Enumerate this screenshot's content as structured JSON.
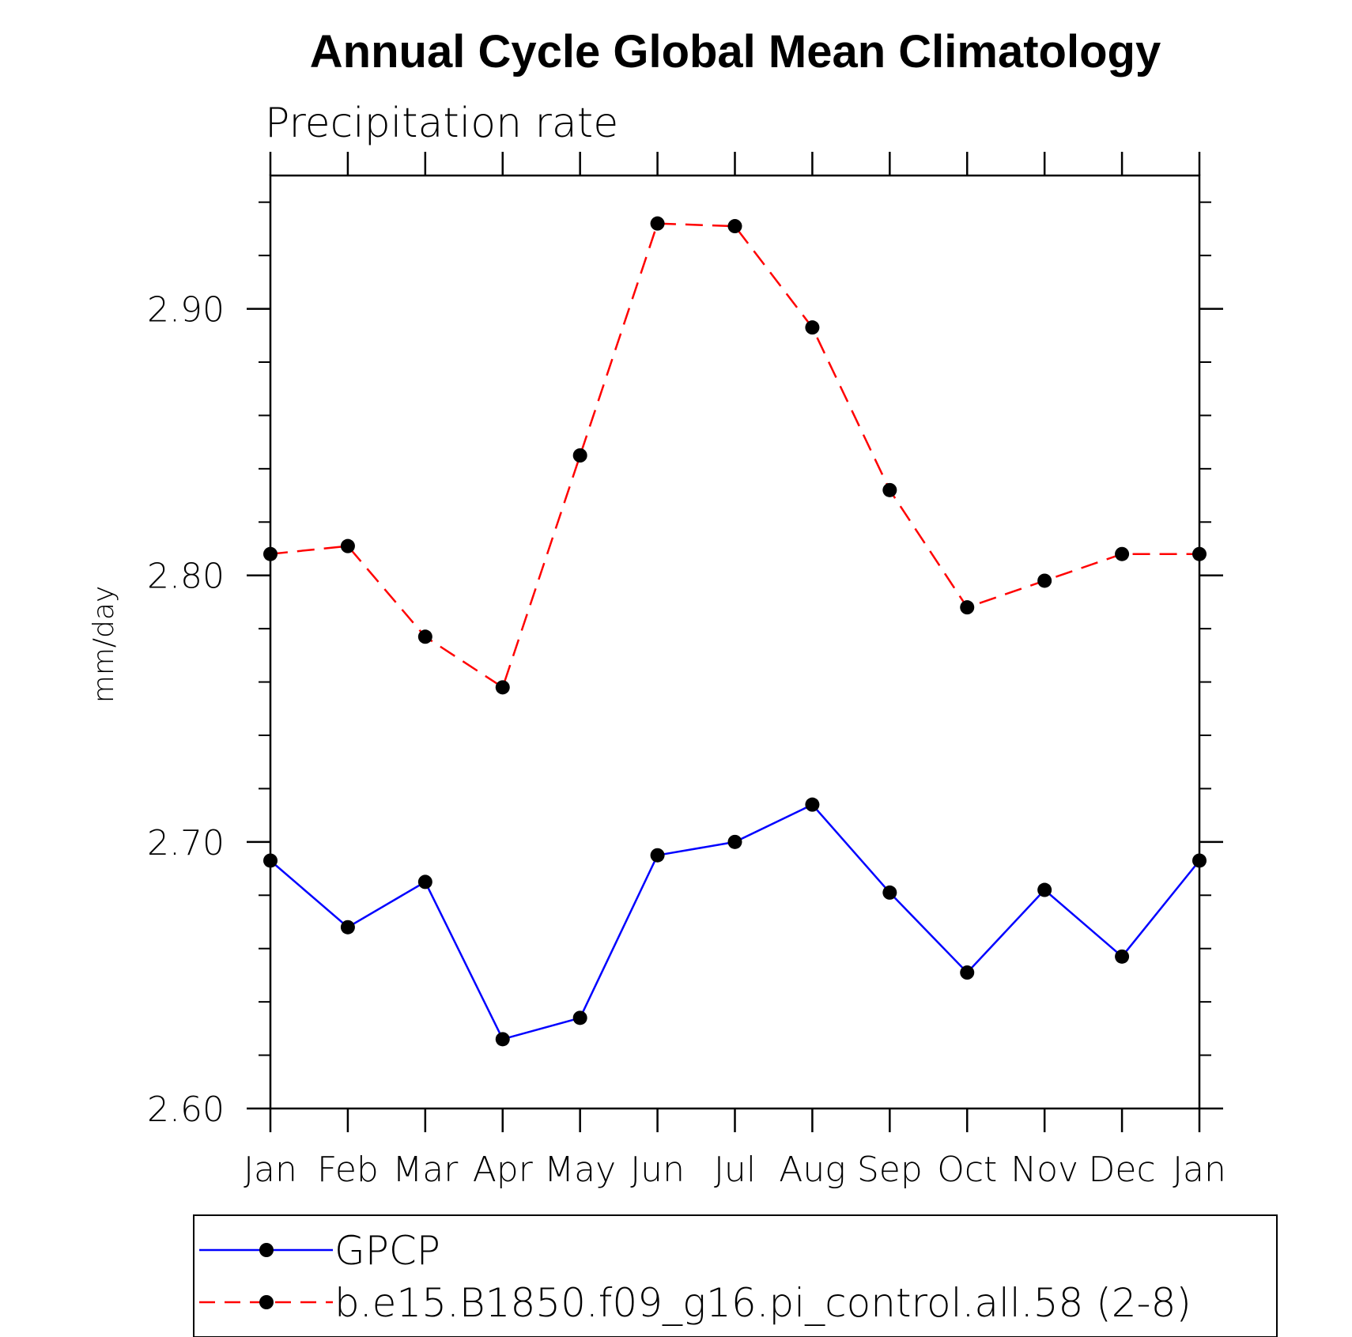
{
  "chart_data": {
    "type": "line",
    "title": "Annual Cycle Global Mean Climatology",
    "subtitle": "Precipitation rate",
    "xlabel": "",
    "ylabel": "mm/day",
    "categories": [
      "Jan",
      "Feb",
      "Mar",
      "Apr",
      "May",
      "Jun",
      "Jul",
      "Aug",
      "Sep",
      "Oct",
      "Nov",
      "Dec",
      "Jan"
    ],
    "ylim": [
      2.6,
      2.95
    ],
    "yticks": [
      "2.60",
      "2.70",
      "2.80",
      "2.90"
    ],
    "grid": false,
    "legend_position": "bottom",
    "series": [
      {
        "name": "GPCP",
        "color": "#0000ff",
        "line_style": "solid",
        "marker": "filled-circle",
        "values": [
          2.693,
          2.668,
          2.685,
          2.626,
          2.634,
          2.695,
          2.7,
          2.714,
          2.681,
          2.651,
          2.682,
          2.657,
          2.693
        ]
      },
      {
        "name": "b.e15.B1850.f09_g16.pi_control.all.58 (2-8)",
        "color": "#ff0000",
        "line_style": "dashed",
        "marker": "filled-circle",
        "values": [
          2.808,
          2.811,
          2.777,
          2.758,
          2.845,
          2.932,
          2.931,
          2.893,
          2.832,
          2.788,
          2.798,
          2.808,
          2.808
        ]
      }
    ]
  }
}
